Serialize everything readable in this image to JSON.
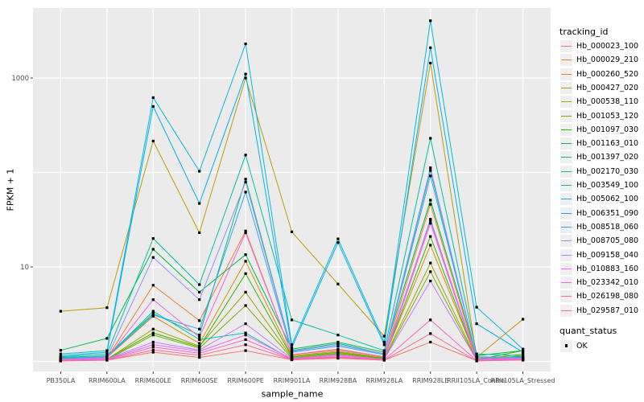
{
  "chart_data": {
    "type": "line",
    "title": "",
    "xlabel": "sample_name",
    "ylabel": "FPKM + 1",
    "y_scale": "log10",
    "ylim": [
      1,
      5000
    ],
    "y_tick_values": [
      10,
      1000
    ],
    "y_tick_labels": [
      "10",
      "1000"
    ],
    "y_gridline_values": [
      1,
      10,
      100,
      1000
    ],
    "grid": "on",
    "legend_position": "right",
    "point_shape": "filled-black-square",
    "legend": {
      "tracking_title": "tracking_id",
      "quant_title": "quant_status",
      "quant_label": "OK"
    },
    "x_categories": [
      "PB350LA",
      "RRIM600LA",
      "RRIM600LE",
      "RRIM600SE",
      "RRIM600PE",
      "RRIM901LA",
      "RRIM928BA",
      "RRIM928LA",
      "RRIM928LE",
      "RRII105LA_Control",
      "RRII105LA_Stressed"
    ],
    "series": [
      {
        "name": "Hb_000023_100",
        "color": "#F8766D",
        "values": [
          1.02,
          1.03,
          1.25,
          1.1,
          1.3,
          1.04,
          1.08,
          1.03,
          1.6,
          1.02,
          1.03
        ]
      },
      {
        "name": "Hb_000029_210",
        "color": "#EA8331",
        "values": [
          1.05,
          1.08,
          6.4,
          2.7,
          24,
          1.18,
          1.35,
          1.12,
          46,
          1.08,
          1.08
        ]
      },
      {
        "name": "Hb_000260_520",
        "color": "#D89000",
        "values": [
          1.06,
          1.1,
          3.0,
          1.55,
          11.5,
          1.15,
          1.28,
          1.1,
          17,
          1.06,
          1.05
        ]
      },
      {
        "name": "Hb_000427_020",
        "color": "#C09B00",
        "values": [
          3.4,
          3.7,
          215,
          23,
          1000,
          23.5,
          6.6,
          1.85,
          1440,
          1.1,
          2.8
        ]
      },
      {
        "name": "Hb_000538_110",
        "color": "#A3A500",
        "values": [
          1.03,
          1.05,
          2.2,
          1.45,
          5.4,
          1.1,
          1.22,
          1.07,
          11,
          1.04,
          1.2
        ]
      },
      {
        "name": "Hb_001053_120",
        "color": "#7CAE00",
        "values": [
          1.02,
          1.04,
          1.9,
          1.38,
          3.9,
          1.08,
          1.2,
          1.06,
          8.9,
          1.03,
          1.15
        ]
      },
      {
        "name": "Hb_001097_030",
        "color": "#39B600",
        "values": [
          1.03,
          1.06,
          2.0,
          1.42,
          8.5,
          1.12,
          1.25,
          1.08,
          21,
          1.04,
          1.3
        ]
      },
      {
        "name": "Hb_001163_010",
        "color": "#00BB4E",
        "values": [
          1.31,
          1.75,
          15.4,
          5.4,
          13.5,
          1.35,
          1.6,
          1.25,
          51,
          1.15,
          1.3
        ]
      },
      {
        "name": "Hb_001397_020",
        "color": "#00BF7D",
        "values": [
          1.1,
          1.15,
          3.2,
          1.9,
          85,
          1.3,
          1.55,
          1.2,
          105,
          1.1,
          1.12
        ]
      },
      {
        "name": "Hb_002170_030",
        "color": "#00C1A3",
        "values": [
          1.12,
          1.2,
          20,
          6.5,
          153,
          2.75,
          1.9,
          1.3,
          230,
          1.2,
          1.15
        ]
      },
      {
        "name": "Hb_003549_100",
        "color": "#00BFC4",
        "values": [
          1.08,
          1.12,
          3.4,
          1.7,
          2.0,
          1.05,
          1.12,
          1.04,
          32,
          1.03,
          1.05
        ]
      },
      {
        "name": "Hb_005062_100",
        "color": "#00BAE0",
        "values": [
          1.2,
          1.3,
          620,
          103,
          2300,
          1.5,
          19.8,
          1.6,
          4040,
          3.75,
          1.35
        ]
      },
      {
        "name": "Hb_006351_090",
        "color": "#00B0F6",
        "values": [
          1.15,
          1.25,
          500,
          47,
          1100,
          1.4,
          18.1,
          1.5,
          2090,
          2.5,
          1.25
        ]
      },
      {
        "name": "Hb_008518_060",
        "color": "#35A2FF",
        "values": [
          1.08,
          1.12,
          3.1,
          2.2,
          62,
          1.25,
          1.45,
          1.18,
          92,
          1.12,
          1.1
        ]
      },
      {
        "name": "Hb_008705_080",
        "color": "#9590FF",
        "values": [
          1.05,
          1.1,
          12.6,
          4.5,
          79,
          1.28,
          1.5,
          1.2,
          112,
          1.1,
          1.08
        ]
      },
      {
        "name": "Hb_009158_040",
        "color": "#C77CFF",
        "values": [
          1.04,
          1.06,
          1.6,
          1.32,
          2.5,
          1.07,
          1.18,
          1.05,
          7.1,
          1.03,
          1.08
        ]
      },
      {
        "name": "Hb_010883_160",
        "color": "#E76BF3",
        "values": [
          1.03,
          1.05,
          1.5,
          1.28,
          1.9,
          1.06,
          1.15,
          1.05,
          29,
          1.02,
          1.06
        ]
      },
      {
        "name": "Hb_023342_010",
        "color": "#FA62DB",
        "values": [
          1.04,
          1.08,
          4.5,
          1.8,
          23,
          1.18,
          1.32,
          1.12,
          31,
          1.06,
          1.06
        ]
      },
      {
        "name": "Hb_026198_080",
        "color": "#FF62BC",
        "values": [
          1.02,
          1.04,
          1.42,
          1.22,
          1.7,
          1.05,
          1.12,
          1.04,
          2.75,
          1.02,
          1.05
        ]
      },
      {
        "name": "Hb_029587_010",
        "color": "#FF6A98",
        "values": [
          1.01,
          1.03,
          1.32,
          1.16,
          1.5,
          1.04,
          1.1,
          1.03,
          1.97,
          1.01,
          1.04
        ]
      }
    ]
  },
  "colors": {
    "panel_bg": "#EBEBEB",
    "gridline": "#FFFFFF",
    "tick_text": "#4D4D4D",
    "tick_mark": "#333333",
    "point": "#000000",
    "legend_key_bg": "#EFEFEF"
  }
}
